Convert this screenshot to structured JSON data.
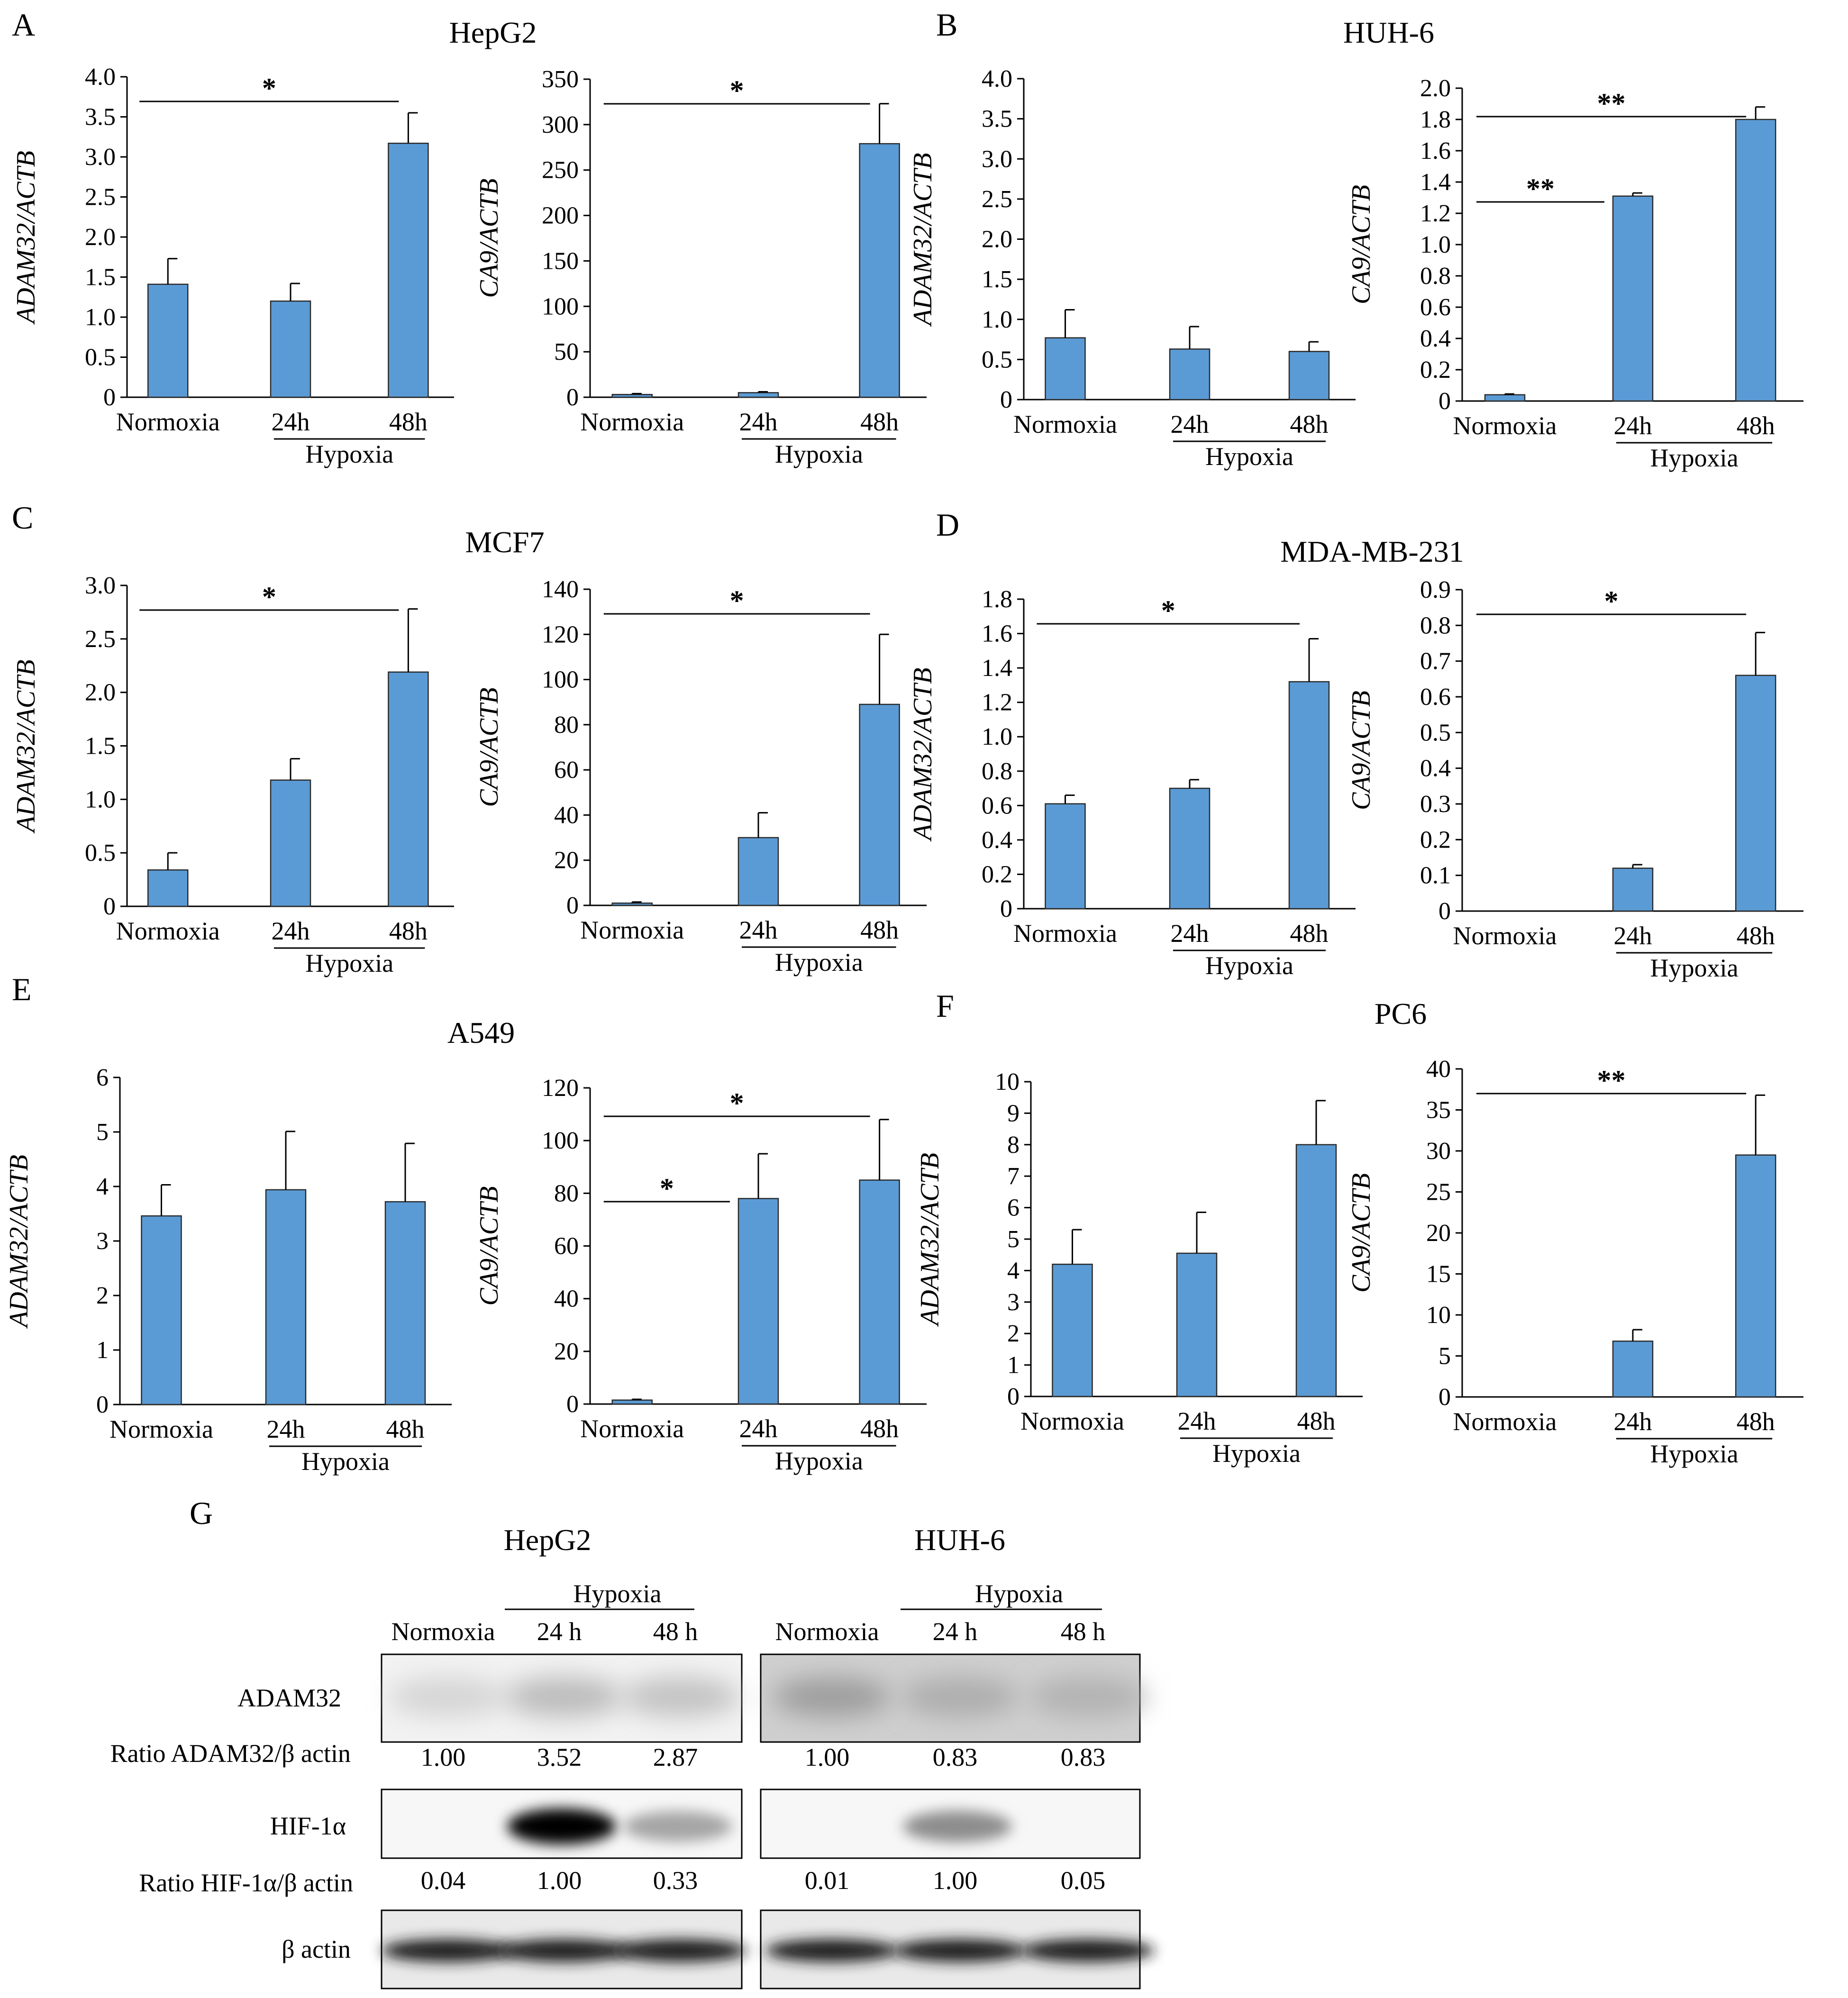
{
  "panels": [
    {
      "letter": "A",
      "title": "HepG2",
      "charts": [
        "A-adam",
        "A-ca9"
      ]
    },
    {
      "letter": "B",
      "title": "HUH-6",
      "charts": [
        "B-adam",
        "B-ca9"
      ]
    },
    {
      "letter": "C",
      "title": "MCF7",
      "charts": [
        "C-adam",
        "C-ca9"
      ]
    },
    {
      "letter": "D",
      "title": "MDA-MB-231",
      "charts": [
        "D-adam",
        "D-ca9"
      ]
    },
    {
      "letter": "E",
      "title": "A549",
      "charts": [
        "E-adam",
        "E-ca9"
      ]
    },
    {
      "letter": "F",
      "title": "PC6",
      "charts": [
        "F-adam",
        "F-ca9"
      ]
    }
  ],
  "chart_data": [
    {
      "id": "A-adam",
      "type": "bar",
      "panel": "A",
      "cell_line": "HepG2",
      "ylabel": "ADAM32/ACTB",
      "ylim": [
        0,
        4.0
      ],
      "ticks": [
        "4.0",
        "3.5",
        "3.0",
        "2.5",
        "2.0",
        "1.5",
        "1.0",
        "0.5",
        "0"
      ],
      "categories": [
        "Normoxia",
        "24h",
        "48h"
      ],
      "group_label": "Hypoxia",
      "values": [
        1.41,
        1.2,
        3.17
      ],
      "errors": [
        0.32,
        0.22,
        0.38
      ],
      "sig": [
        {
          "from": 0,
          "to": 2,
          "label": "*"
        }
      ],
      "color": "#5b9bd5"
    },
    {
      "id": "A-ca9",
      "type": "bar",
      "panel": "A",
      "cell_line": "HepG2",
      "ylabel": "CA9/ACTB",
      "ylim": [
        0,
        350
      ],
      "ticks": [
        "350",
        "300",
        "250",
        "200",
        "150",
        "100",
        "50",
        "0"
      ],
      "categories": [
        "Normoxia",
        "24h",
        "48h"
      ],
      "group_label": "Hypoxia",
      "values": [
        3,
        5,
        279
      ],
      "errors": [
        1,
        1,
        44
      ],
      "sig": [
        {
          "from": 0,
          "to": 2,
          "label": "*"
        }
      ],
      "color": "#5b9bd5"
    },
    {
      "id": "B-adam",
      "type": "bar",
      "panel": "B",
      "cell_line": "HUH-6",
      "ylabel": "ADAM32/ACTB",
      "ylim": [
        0,
        4.0
      ],
      "ticks": [
        "4.0",
        "3.5",
        "3.0",
        "2.5",
        "2.0",
        "1.5",
        "1.0",
        "0.5",
        "0"
      ],
      "categories": [
        "Normoxia",
        "24h",
        "48h"
      ],
      "group_label": "Hypoxia",
      "values": [
        0.77,
        0.63,
        0.6
      ],
      "errors": [
        0.35,
        0.28,
        0.12
      ],
      "sig": [],
      "color": "#5b9bd5"
    },
    {
      "id": "B-ca9",
      "type": "bar",
      "panel": "B",
      "cell_line": "HUH-6",
      "ylabel": "CA9/ACTB",
      "ylim": [
        0,
        2.0
      ],
      "ticks": [
        "2.0",
        "1.8",
        "1.6",
        "1.4",
        "1.2",
        "1.0",
        "0.8",
        "0.6",
        "0.4",
        "0.2",
        "0"
      ],
      "categories": [
        "Normoxia",
        "24h",
        "48h"
      ],
      "group_label": "Hypoxia",
      "values": [
        0.04,
        1.31,
        1.8
      ],
      "errors": [
        0.005,
        0.02,
        0.08
      ],
      "sig": [
        {
          "from": 0,
          "to": 1,
          "label": "**"
        },
        {
          "from": 0,
          "to": 2,
          "label": "**"
        }
      ],
      "color": "#5b9bd5"
    },
    {
      "id": "C-adam",
      "type": "bar",
      "panel": "C",
      "cell_line": "MCF7",
      "ylabel": "ADAM32/ACTB",
      "ylim": [
        0,
        3.0
      ],
      "ticks": [
        "3.0",
        "2.5",
        "2.0",
        "1.5",
        "1.0",
        "0.5",
        "0"
      ],
      "categories": [
        "Normoxia",
        "24h",
        "48h"
      ],
      "group_label": "Hypoxia",
      "values": [
        0.34,
        1.18,
        2.19
      ],
      "errors": [
        0.16,
        0.2,
        0.59
      ],
      "sig": [
        {
          "from": 0,
          "to": 2,
          "label": "*"
        }
      ],
      "color": "#5b9bd5"
    },
    {
      "id": "C-ca9",
      "type": "bar",
      "panel": "C",
      "cell_line": "MCF7",
      "ylabel": "CA9/ACTB",
      "ylim": [
        0,
        140
      ],
      "ticks": [
        "140",
        "120",
        "100",
        "80",
        "60",
        "40",
        "20",
        "0"
      ],
      "categories": [
        "Normoxia",
        "24h",
        "48h"
      ],
      "group_label": "Hypoxia",
      "values": [
        1,
        30,
        89
      ],
      "errors": [
        0.5,
        11,
        31
      ],
      "sig": [
        {
          "from": 0,
          "to": 2,
          "label": "*"
        }
      ],
      "color": "#5b9bd5"
    },
    {
      "id": "D-adam",
      "type": "bar",
      "panel": "D",
      "cell_line": "MDA-MB-231",
      "ylabel": "ADAM32/ACTB",
      "ylim": [
        0,
        1.8
      ],
      "ticks": [
        "1.8",
        "1.6",
        "1.4",
        "1.2",
        "1.0",
        "0.8",
        "0.6",
        "0.4",
        "0.2",
        "0"
      ],
      "categories": [
        "Normoxia",
        "24h",
        "48h"
      ],
      "group_label": "Hypoxia",
      "values": [
        0.61,
        0.7,
        1.32
      ],
      "errors": [
        0.05,
        0.05,
        0.25
      ],
      "sig": [
        {
          "from": 0,
          "to": 2,
          "label": "*"
        }
      ],
      "color": "#5b9bd5"
    },
    {
      "id": "D-ca9",
      "type": "bar",
      "panel": "D",
      "cell_line": "MDA-MB-231",
      "ylabel": "CA9/ACTB",
      "ylim": [
        0,
        0.9
      ],
      "ticks": [
        "0.9",
        "0.8",
        "0.7",
        "0.6",
        "0.5",
        "0.4",
        "0.3",
        "0.2",
        "0.1",
        "0"
      ],
      "categories": [
        "Normoxia",
        "24h",
        "48h"
      ],
      "group_label": "Hypoxia",
      "values": [
        0.0,
        0.12,
        0.66
      ],
      "errors": [
        0.0,
        0.01,
        0.12
      ],
      "sig": [
        {
          "from": 0,
          "to": 2,
          "label": "*"
        }
      ],
      "color": "#5b9bd5"
    },
    {
      "id": "E-adam",
      "type": "bar",
      "panel": "E",
      "cell_line": "A549",
      "ylabel": "ADAM32/ACTB",
      "ylim": [
        0,
        6
      ],
      "ticks": [
        "6",
        "5",
        "4",
        "3",
        "2",
        "1",
        "0"
      ],
      "categories": [
        "Normoxia",
        "24h",
        "48h"
      ],
      "group_label": "Hypoxia",
      "values": [
        3.46,
        3.94,
        3.72
      ],
      "errors": [
        0.57,
        1.07,
        1.07
      ],
      "sig": [],
      "color": "#5b9bd5"
    },
    {
      "id": "E-ca9",
      "type": "bar",
      "panel": "E",
      "cell_line": "A549",
      "ylabel": "CA9/ACTB",
      "ylim": [
        0,
        120
      ],
      "ticks": [
        "120",
        "100",
        "80",
        "60",
        "40",
        "20",
        "0"
      ],
      "categories": [
        "Normoxia",
        "24h",
        "48h"
      ],
      "group_label": "Hypoxia",
      "values": [
        1.5,
        78,
        85
      ],
      "errors": [
        0.3,
        17,
        23
      ],
      "sig": [
        {
          "from": 0,
          "to": 1,
          "label": "*"
        },
        {
          "from": 0,
          "to": 2,
          "label": "*"
        }
      ],
      "color": "#5b9bd5"
    },
    {
      "id": "F-adam",
      "type": "bar",
      "panel": "F",
      "cell_line": "PC6",
      "ylabel": "ADAM32/ACTB",
      "ylim": [
        0,
        10
      ],
      "ticks": [
        "10",
        "9",
        "8",
        "7",
        "6",
        "5",
        "4",
        "3",
        "2",
        "1",
        "0"
      ],
      "categories": [
        "Normoxia",
        "24h",
        "48h"
      ],
      "group_label": "Hypoxia",
      "values": [
        4.2,
        4.55,
        8.0
      ],
      "errors": [
        1.1,
        1.3,
        1.4
      ],
      "sig": [],
      "color": "#5b9bd5"
    },
    {
      "id": "F-ca9",
      "type": "bar",
      "panel": "F",
      "cell_line": "PC6",
      "ylabel": "CA9/ACTB",
      "ylim": [
        0,
        40
      ],
      "ticks": [
        "40",
        "35",
        "30",
        "25",
        "20",
        "15",
        "10",
        "5",
        "0"
      ],
      "categories": [
        "Normoxia",
        "24h",
        "48h"
      ],
      "group_label": "Hypoxia",
      "values": [
        0.0,
        6.8,
        29.5
      ],
      "errors": [
        0.0,
        1.4,
        7.3
      ],
      "sig": [
        {
          "from": 0,
          "to": 2,
          "label": "**"
        }
      ],
      "color": "#5b9bd5"
    }
  ],
  "western": {
    "letter": "G",
    "hypoxia_label": "Hypoxia",
    "blots": [
      {
        "cell_line": "HepG2",
        "lanes": [
          "Normoxia",
          "24 h",
          "48 h"
        ],
        "adam32_ratio": [
          "1.00",
          "3.52",
          "2.87"
        ],
        "hif_ratio": [
          "0.04",
          "1.00",
          "0.33"
        ],
        "adam32_intensity": [
          0.1,
          0.22,
          0.18
        ],
        "hif_intensity": [
          0.0,
          1.0,
          0.3
        ],
        "actin_intensity": [
          0.95,
          0.95,
          0.95
        ]
      },
      {
        "cell_line": "HUH-6",
        "lanes": [
          "Normoxia",
          "24 h",
          "48 h"
        ],
        "adam32_ratio": [
          "1.00",
          "0.83",
          "0.83"
        ],
        "hif_ratio": [
          "0.01",
          "1.00",
          "0.05"
        ],
        "adam32_intensity": [
          0.35,
          0.28,
          0.26
        ],
        "hif_intensity": [
          0.0,
          0.4,
          0.0
        ],
        "actin_intensity": [
          0.95,
          0.95,
          0.95
        ]
      }
    ],
    "row_labels": {
      "adam32": "ADAM32",
      "adam32_ratio": "Ratio ADAM32/β actin",
      "hif": "HIF-1α",
      "hif_ratio": "Ratio HIF-1α/β actin",
      "actin": "β actin"
    }
  }
}
